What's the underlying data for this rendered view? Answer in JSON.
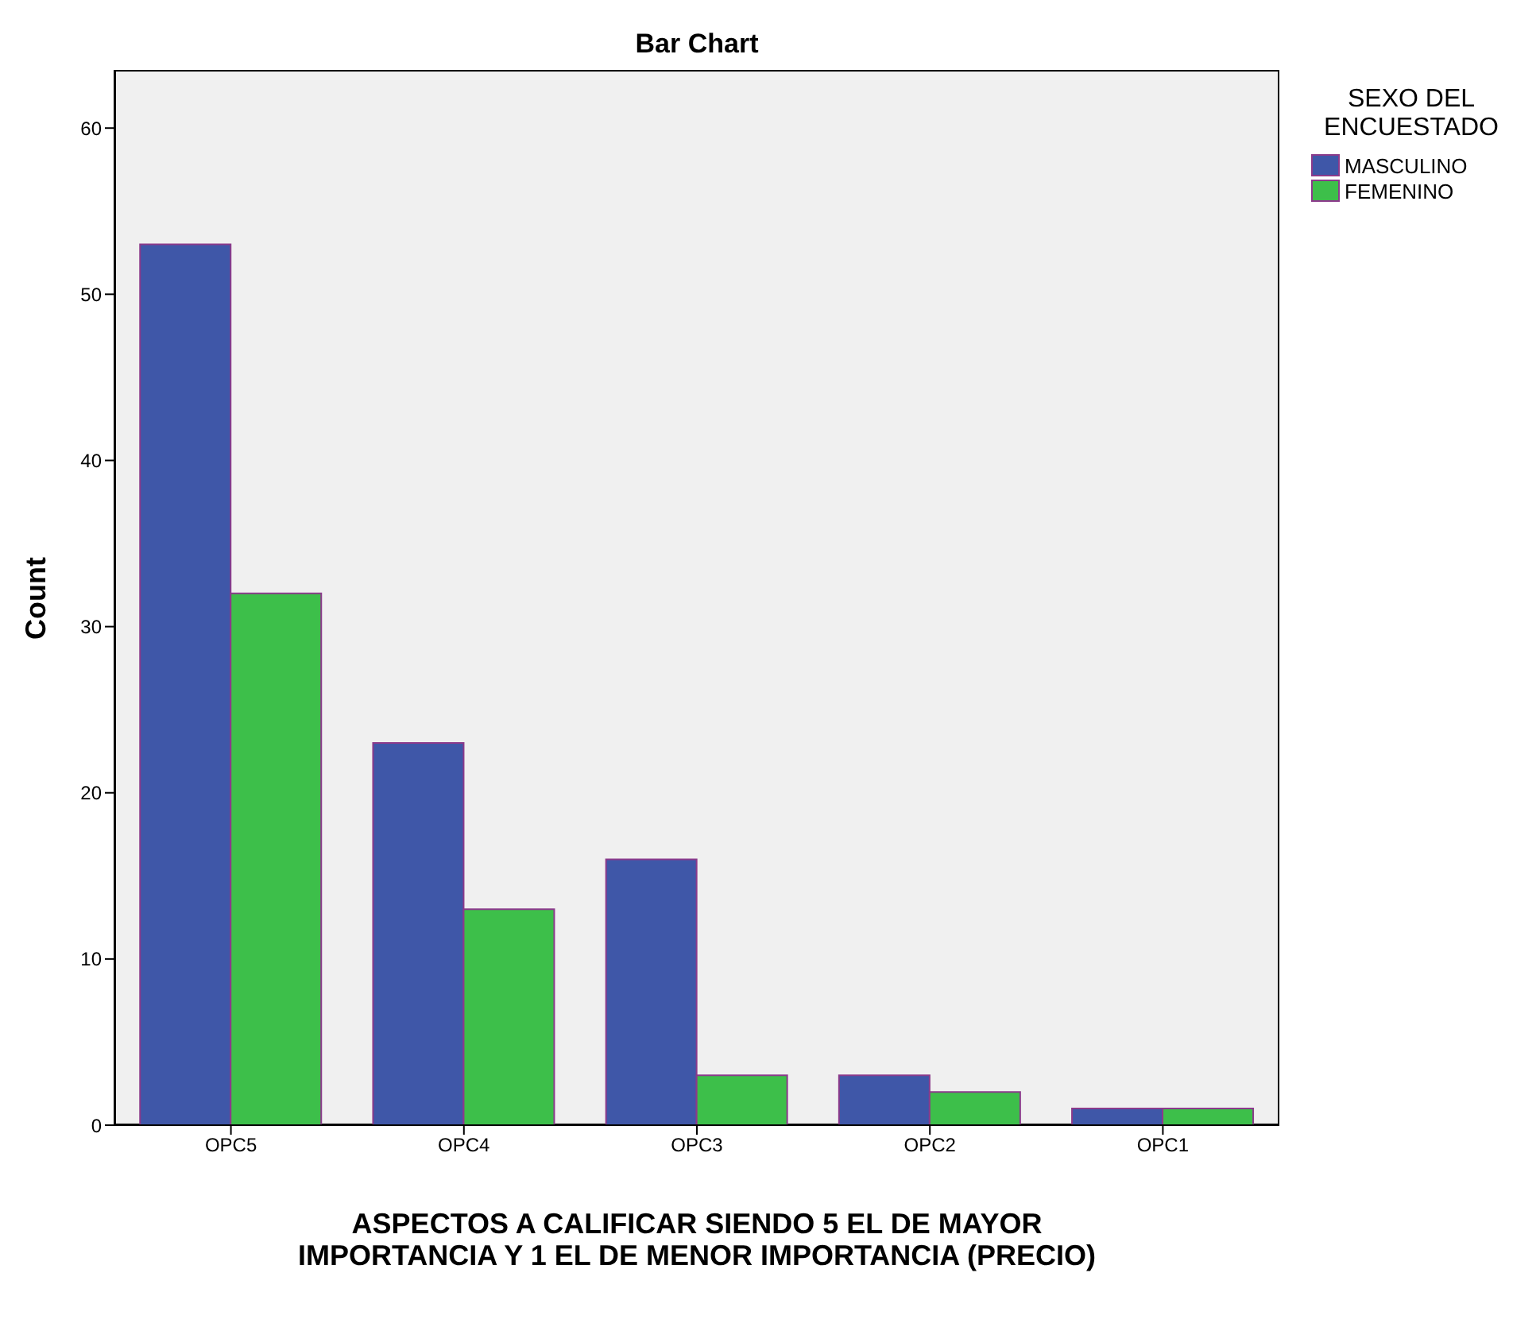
{
  "chart_data": {
    "type": "bar",
    "title": "Bar Chart",
    "xlabel": "ASPECTOS A CALIFICAR SIENDO 5 EL DE MAYOR IMPORTANCIA Y 1 EL DE MENOR IMPORTANCIA (PRECIO)",
    "ylabel": "Count",
    "legend_title": "SEXO DEL ENCUESTADO",
    "categories": [
      "OPC5",
      "OPC4",
      "OPC3",
      "OPC2",
      "OPC1"
    ],
    "series": [
      {
        "name": "MASCULINO",
        "color": "#3f57a8",
        "values": [
          53,
          23,
          16,
          3,
          1
        ]
      },
      {
        "name": "FEMENINO",
        "color": "#3dbf4a",
        "values": [
          32,
          13,
          3,
          2,
          1
        ]
      }
    ],
    "ylim": [
      0,
      63.5
    ],
    "yticks": [
      0,
      10,
      20,
      30,
      40,
      50,
      60
    ],
    "grid": false,
    "legend": "top right"
  }
}
